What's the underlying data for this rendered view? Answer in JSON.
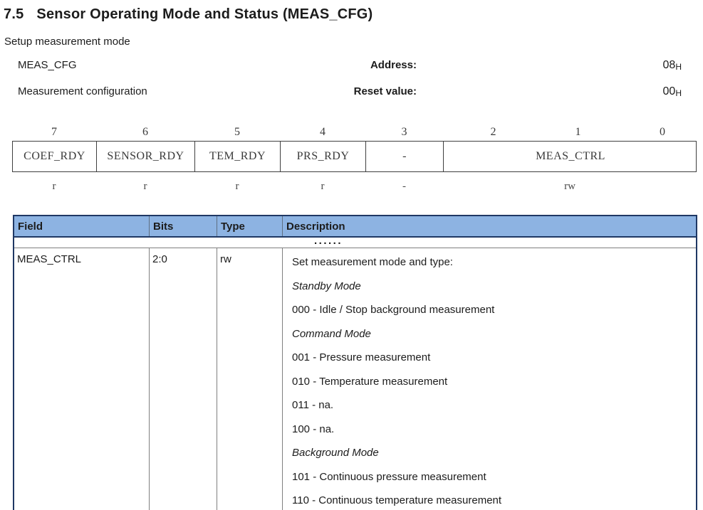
{
  "page": {
    "section_number": "7.5",
    "title": "Sensor Operating Mode and Status (MEAS_CFG)",
    "subtitle": "Setup measurement mode"
  },
  "register_info": {
    "name": "MEAS_CFG",
    "description": "Measurement configuration",
    "address_label": "Address:",
    "address_value": "08",
    "address_unit": "H",
    "reset_label": "Reset value:",
    "reset_value": "00",
    "reset_unit": "H"
  },
  "bit_table": {
    "bit_numbers": [
      "7",
      "6",
      "5",
      "4",
      "3",
      "2",
      "1",
      "0"
    ],
    "fields": [
      {
        "name": "COEF_RDY",
        "access": "r"
      },
      {
        "name": "SENSOR_RDY",
        "access": "r"
      },
      {
        "name": "TEM_RDY",
        "access": "r"
      },
      {
        "name": "PRS_RDY",
        "access": "r"
      },
      {
        "name": "-",
        "access": "-"
      },
      {
        "name": "MEAS_CTRL",
        "access": "rw",
        "span": 3
      }
    ]
  },
  "field_table": {
    "header_bg": "#8db3e2",
    "headers": [
      "Field",
      "Bits",
      "Type",
      "Description"
    ],
    "ellipsis": "......",
    "rows": [
      {
        "field": "MEAS_CTRL",
        "bits": "2:0",
        "type": "rw",
        "description_lines": [
          {
            "text": "Set measurement mode and type:",
            "style": ""
          },
          {
            "text": "Standby Mode",
            "style": "italic"
          },
          {
            "text": "000 - Idle / Stop background measurement",
            "style": ""
          },
          {
            "text": "Command Mode",
            "style": "italic"
          },
          {
            "text": "001 - Pressure measurement",
            "style": ""
          },
          {
            "text": "010 - Temperature measurement",
            "style": ""
          },
          {
            "text": "011 - na.",
            "style": ""
          },
          {
            "text": "100 - na.",
            "style": ""
          },
          {
            "text": "Background Mode",
            "style": "italic"
          },
          {
            "text": "101 - Continuous pressure measurement",
            "style": ""
          },
          {
            "text": "110 - Continuous temperature measurement",
            "style": ""
          }
        ]
      }
    ]
  }
}
